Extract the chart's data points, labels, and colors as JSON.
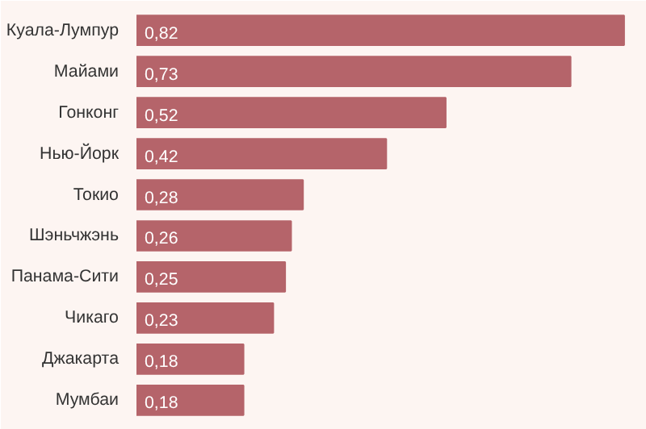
{
  "chart_data": {
    "type": "bar",
    "orientation": "horizontal",
    "categories": [
      "Куала-Лумпур",
      "Майами",
      "Гонконг",
      "Нью-Йорк",
      "Токио",
      "Шэньчжэнь",
      "Панама-Сити",
      "Чикаго",
      "Джакарта",
      "Мумбаи"
    ],
    "values": [
      0.82,
      0.73,
      0.52,
      0.42,
      0.28,
      0.26,
      0.25,
      0.23,
      0.18,
      0.18
    ],
    "value_labels": [
      "0,82",
      "0,73",
      "0,52",
      "0,42",
      "0,28",
      "0,26",
      "0,25",
      "0,23",
      "0,18",
      "0,18"
    ],
    "color": "#b5646a",
    "grid": false
  }
}
